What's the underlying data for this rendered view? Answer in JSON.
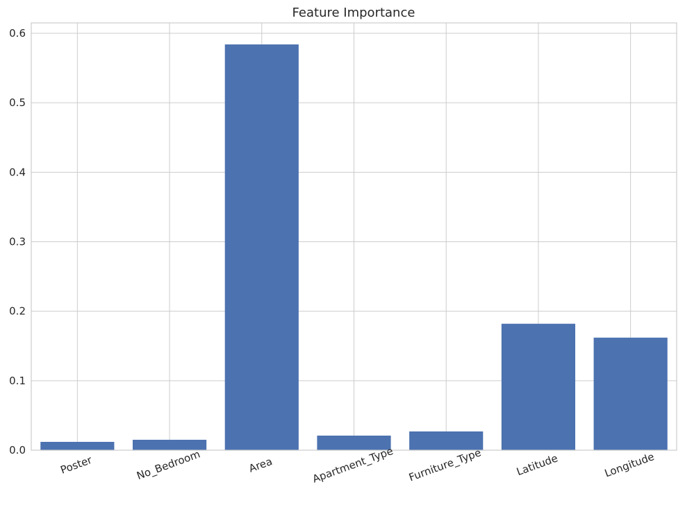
{
  "chart_data": {
    "type": "bar",
    "title": "Feature Importance",
    "xlabel": "",
    "ylabel": "",
    "categories": [
      "Poster",
      "No_Bedroom",
      "Area",
      "Apartment_Type",
      "Furniture_Type",
      "Latitude",
      "Longitude"
    ],
    "values": [
      0.012,
      0.015,
      0.584,
      0.021,
      0.027,
      0.182,
      0.162
    ],
    "ylim": [
      0,
      0.615
    ],
    "yticks": [
      0.0,
      0.1,
      0.2,
      0.3,
      0.4,
      0.5,
      0.6
    ],
    "ytick_labels": [
      "0.0",
      "0.1",
      "0.2",
      "0.3",
      "0.4",
      "0.5",
      "0.6"
    ],
    "bar_color": "#4c72b0",
    "grid": true,
    "xtick_rotation_deg": -20
  }
}
